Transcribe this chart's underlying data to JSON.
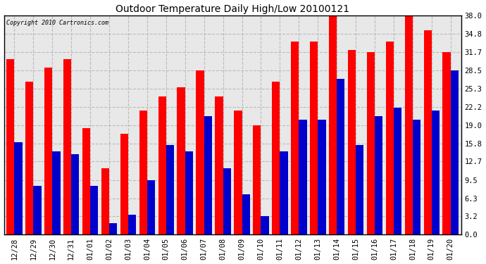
{
  "title": "Outdoor Temperature Daily High/Low 20100121",
  "copyright": "Copyright 2010 Cartronics.com",
  "dates": [
    "12/28",
    "12/29",
    "12/30",
    "12/31",
    "01/01",
    "01/02",
    "01/03",
    "01/04",
    "01/05",
    "01/06",
    "01/07",
    "01/08",
    "01/09",
    "01/10",
    "01/11",
    "01/12",
    "01/13",
    "01/14",
    "01/15",
    "01/16",
    "01/17",
    "01/18",
    "01/19",
    "01/20"
  ],
  "highs": [
    30.5,
    26.5,
    29.0,
    30.5,
    18.5,
    11.5,
    17.5,
    21.5,
    24.0,
    25.5,
    28.5,
    24.0,
    21.5,
    19.0,
    26.5,
    33.5,
    33.5,
    38.5,
    32.0,
    31.7,
    33.5,
    38.0,
    35.5,
    31.7
  ],
  "lows": [
    16.0,
    8.5,
    14.5,
    14.0,
    8.5,
    2.0,
    3.5,
    9.5,
    15.5,
    14.5,
    20.5,
    11.5,
    7.0,
    3.2,
    14.5,
    20.0,
    20.0,
    27.0,
    15.5,
    20.5,
    22.0,
    20.0,
    21.5,
    28.5
  ],
  "high_color": "#ff0000",
  "low_color": "#0000cc",
  "yticks": [
    0.0,
    3.2,
    6.3,
    9.5,
    12.7,
    15.8,
    19.0,
    22.2,
    25.3,
    28.5,
    31.7,
    34.8,
    38.0
  ],
  "ymin": 0.0,
  "ymax": 38.0,
  "bg_color": "#ffffff",
  "plot_bg": "#e8e8e8",
  "grid_color": "#bbbbbb",
  "border_color": "#000000"
}
